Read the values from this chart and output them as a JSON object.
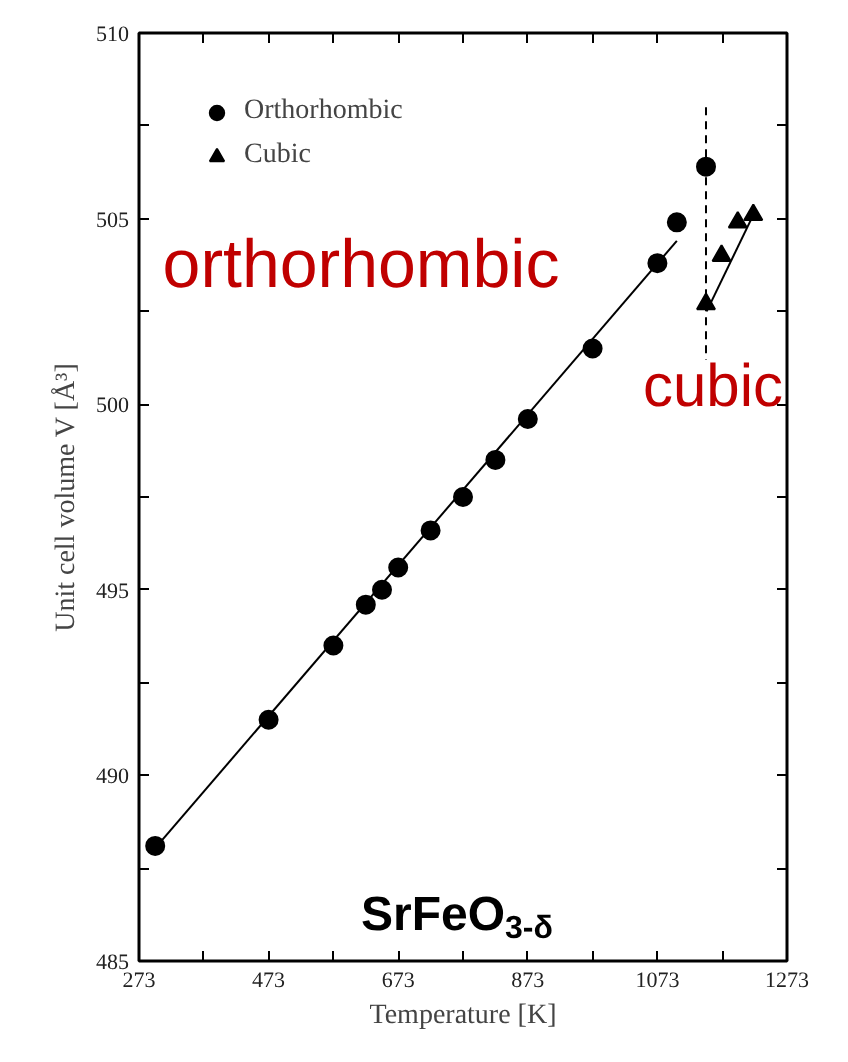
{
  "chart_data": {
    "type": "scatter",
    "xlabel": "Temperature [K]",
    "ylabel": "Unit cell volume V [Å³]",
    "xlim": [
      273,
      1273
    ],
    "ylim": [
      485,
      510
    ],
    "xticks": [
      273,
      {
        "value": 373,
        "label": null
      },
      473,
      {
        "value": 573,
        "label": null
      },
      673,
      {
        "value": 773,
        "label": null
      },
      873,
      {
        "value": 973,
        "label": null
      },
      1073,
      {
        "value": 1173,
        "label": null
      },
      1273
    ],
    "yticks": [
      485,
      {
        "value": 487.5,
        "label": null
      },
      490,
      {
        "value": 492.5,
        "label": null
      },
      495,
      {
        "value": 497.5,
        "label": null
      },
      500,
      {
        "value": 502.5,
        "label": null
      },
      505,
      {
        "value": 507.5,
        "label": null
      },
      510
    ],
    "series": [
      {
        "name": "Orthorhombic",
        "marker": "circle",
        "color": "#000000",
        "x": [
          298,
          473,
          573,
          623,
          648,
          673,
          723,
          773,
          823,
          873,
          973,
          1073,
          1103,
          1148
        ],
        "values": [
          488.1,
          491.5,
          493.5,
          494.6,
          495.0,
          495.6,
          496.6,
          497.5,
          498.5,
          499.6,
          501.5,
          503.8,
          504.9,
          506.4
        ]
      },
      {
        "name": "Cubic",
        "marker": "triangle",
        "color": "#000000",
        "x": [
          1148,
          1172,
          1197,
          1221
        ],
        "values": [
          502.7,
          504.0,
          504.9,
          505.1
        ]
      },
      {
        "type": "line",
        "line_style": "solid",
        "color": "#000000",
        "x": [
          296,
          1103
        ],
        "values": [
          488.0,
          504.4
        ]
      },
      {
        "type": "line",
        "line_style": "solid",
        "color": "#000000",
        "x": [
          1149,
          1221
        ],
        "values": [
          502.5,
          505.1
        ]
      },
      {
        "type": "line",
        "line_style": "dashed",
        "color": "#000000",
        "x": [
          1148,
          1148
        ],
        "values": [
          508.0,
          501.2
        ]
      }
    ],
    "annotations": [
      "orthorhombic",
      "cubic",
      "SrFeO$_{3-δ}$"
    ],
    "legend": "top left",
    "grid": false
  }
}
